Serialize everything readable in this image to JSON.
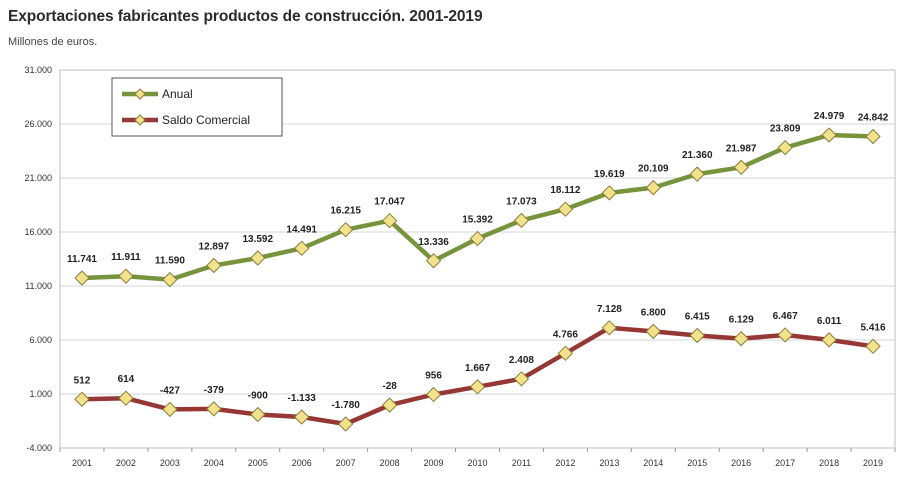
{
  "chart_data": {
    "type": "line",
    "title": "Exportaciones fabricantes productos de construcción. 2001-2019",
    "subtitle": "Millones de euros.",
    "xlabel": "",
    "ylabel": "",
    "categories": [
      "2001",
      "2002",
      "2003",
      "2004",
      "2005",
      "2006",
      "2007",
      "2008",
      "2009",
      "2010",
      "2011",
      "2012",
      "2013",
      "2014",
      "2015",
      "2016",
      "2017",
      "2018",
      "2019"
    ],
    "ylim": [
      -4000,
      31000
    ],
    "yticks": [
      31000,
      26000,
      21000,
      16000,
      11000,
      6000,
      1000,
      -4000
    ],
    "ytick_labels": [
      "31.000",
      "26.000",
      "21.000",
      "16.000",
      "11.000",
      "6.000",
      "1.000",
      "-4.000"
    ],
    "grid": true,
    "legend_position": "top-left",
    "series": [
      {
        "name": "Anual",
        "color": "#77933c",
        "values": [
          11741,
          11911,
          11590,
          12897,
          13592,
          14491,
          16215,
          17047,
          13336,
          15392,
          17073,
          18112,
          19619,
          20109,
          21360,
          21987,
          23809,
          24979,
          24842
        ],
        "labels": [
          "11.741",
          "11.911",
          "11.590",
          "12.897",
          "13.592",
          "14.491",
          "16.215",
          "17.047",
          "13.336",
          "15.392",
          "17.073",
          "18.112",
          "19.619",
          "20.109",
          "21.360",
          "21.987",
          "23.809",
          "24.979",
          "24.842"
        ]
      },
      {
        "name": "Saldo Comercial",
        "color": "#953735",
        "values": [
          512,
          614,
          -427,
          -379,
          -900,
          -1133,
          -1780,
          -28,
          956,
          1667,
          2408,
          4766,
          7128,
          6800,
          6415,
          6129,
          6467,
          6011,
          5416
        ],
        "labels": [
          "512",
          "614",
          "-427",
          "-379",
          "-900",
          "-1.133",
          "-1.780",
          "-28",
          "956",
          "1.667",
          "2.408",
          "4.766",
          "7.128",
          "6.800",
          "6.415",
          "6.129",
          "6.467",
          "6.011",
          "5.416"
        ]
      }
    ],
    "marker_color": "#f2e28c"
  }
}
